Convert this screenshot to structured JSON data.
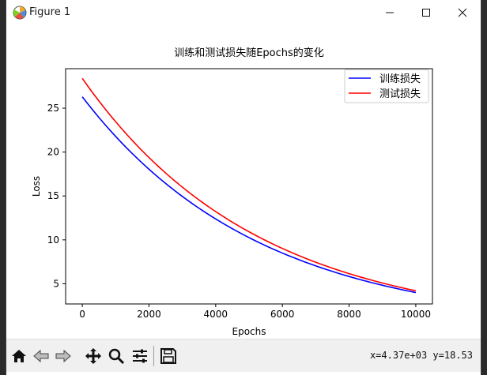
{
  "window": {
    "title": "Figure 1",
    "icon": "matplotlib-figure-icon"
  },
  "chart_data": {
    "type": "line",
    "title": "训练和测试损失随Epochs的变化",
    "xlabel": "Epochs",
    "ylabel": "Loss",
    "xlim": [
      -500,
      10500
    ],
    "ylim": [
      2.7,
      29.5
    ],
    "xticks": [
      0,
      2000,
      4000,
      6000,
      8000,
      10000
    ],
    "xtick_labels": [
      "0",
      "2000",
      "4000",
      "6000",
      "8000",
      "10000"
    ],
    "yticks": [
      5,
      10,
      15,
      20,
      25
    ],
    "ytick_labels": [
      "5",
      "10",
      "15",
      "20",
      "25"
    ],
    "grid": false,
    "legend_position": "upper right",
    "series": [
      {
        "name": "训练损失",
        "color": "#0000ff",
        "x": [
          0,
          1000,
          2000,
          3000,
          4000,
          5000,
          6000,
          7000,
          8000,
          9000,
          10000
        ],
        "y": [
          26.3,
          21.9,
          18.3,
          15.3,
          12.5,
          10.3,
          8.5,
          7.0,
          5.8,
          4.9,
          4.0
        ]
      },
      {
        "name": "测试损失",
        "color": "#ff0000",
        "x": [
          0,
          1000,
          2000,
          3000,
          4000,
          5000,
          6000,
          7000,
          8000,
          9000,
          10000
        ],
        "y": [
          28.4,
          23.4,
          19.2,
          15.9,
          13.2,
          10.9,
          9.0,
          7.4,
          6.1,
          5.1,
          4.2
        ]
      }
    ]
  },
  "status": {
    "coords_text": "x=4.37e+03 y=18.53"
  }
}
